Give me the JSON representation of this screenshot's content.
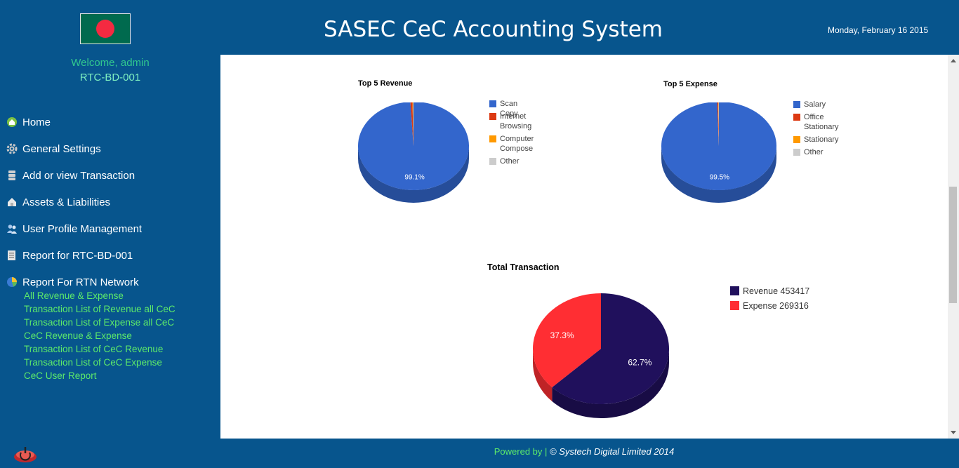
{
  "header": {
    "title": "SASEC CeC Accounting System",
    "date": "Monday, February 16 2015"
  },
  "sidebar": {
    "welcome": "Welcome, admin",
    "branch": "RTC-BD-001",
    "items": [
      {
        "label": "Home",
        "icon": "home-icon"
      },
      {
        "label": "General Settings",
        "icon": "gear-icon"
      },
      {
        "label": "Add or view Transaction",
        "icon": "database-icon"
      },
      {
        "label": "Assets & Liabilities",
        "icon": "house-icon"
      },
      {
        "label": "User Profile Management",
        "icon": "users-icon"
      },
      {
        "label": "Report for RTC-BD-001",
        "icon": "report-icon"
      },
      {
        "label": "Report For RTN Network",
        "icon": "pie-chart-icon"
      }
    ],
    "sub_items": [
      "All Revenue & Expense",
      "Transaction List of Revenue all CeC",
      "Transaction List of Expense all CeC",
      "CeC Revenue & Expense",
      "Transaction List of CeC Revenue",
      "Transaction List of CeC Expense",
      "CeC User Report"
    ]
  },
  "footer": {
    "powered_by": "Powered by |",
    "copyright": "© Systech Digital Limited 2014"
  },
  "colors": {
    "background": "#07558d",
    "green_text": "#5dea6a",
    "blue": "#3366cc",
    "red": "#dc3912",
    "orange": "#ff9900",
    "gray": "#cccccc",
    "revenue": "#20105c",
    "expense": "#ff2e33"
  },
  "chart_data": [
    {
      "type": "pie",
      "title": "Top 5 Revenue",
      "categories": [
        "Scan Copy",
        "Internet Browsing",
        "Computer Compose",
        "Other"
      ],
      "values": [
        99.1,
        0.6,
        0.2,
        0.1
      ],
      "labels": [
        "99.1%"
      ],
      "colors": [
        "#3366cc",
        "#dc3912",
        "#ff9900",
        "#cccccc"
      ],
      "legend": "right"
    },
    {
      "type": "pie",
      "title": "Top 5 Expense",
      "categories": [
        "Salary",
        "Office Stationary",
        "Stationary",
        "Other"
      ],
      "values": [
        99.5,
        0.3,
        0.1,
        0.1
      ],
      "labels": [
        "99.5%"
      ],
      "colors": [
        "#3366cc",
        "#dc3912",
        "#ff9900",
        "#cccccc"
      ],
      "legend": "right"
    },
    {
      "type": "pie",
      "title": "Total Transaction",
      "categories": [
        "Revenue 453417",
        "Expense 269316"
      ],
      "values": [
        453417,
        269316
      ],
      "labels": [
        "62.7%",
        "37.3%"
      ],
      "colors": [
        "#20105c",
        "#ff2e33"
      ],
      "legend": "right"
    }
  ]
}
